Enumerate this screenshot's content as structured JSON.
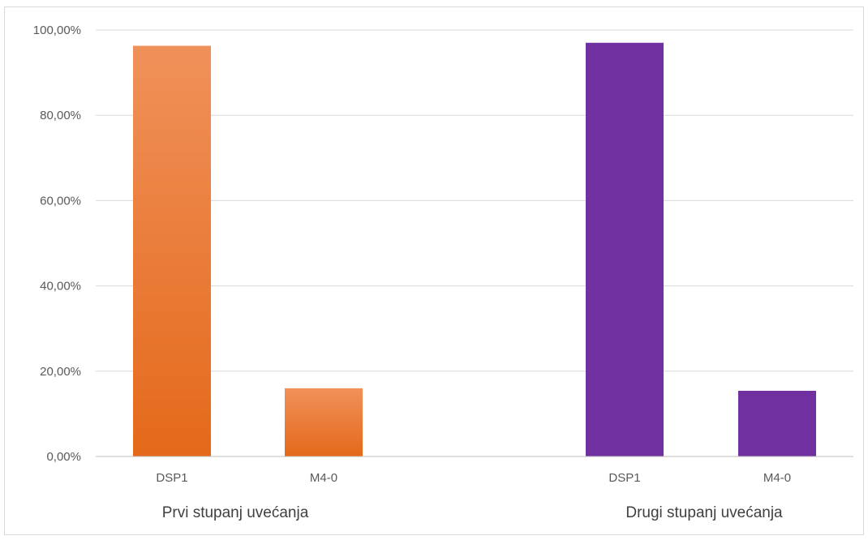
{
  "chart_data": {
    "type": "bar",
    "title": "",
    "xlabel": "",
    "ylabel": "",
    "ylim": [
      0,
      100
    ],
    "y_ticks": [
      0,
      20,
      40,
      60,
      80,
      100
    ],
    "y_tick_labels": [
      "0,00%",
      "20,00%",
      "40,00%",
      "60,00%",
      "80,00%",
      "100,00%"
    ],
    "grid": true,
    "groups": [
      {
        "label": "Prvi stupanj uvećanja",
        "color_top": "#F0915A",
        "color_bottom": "#E4691A",
        "categories": [
          "DSP1",
          "M4-0"
        ],
        "values": [
          96.3,
          16.0
        ]
      },
      {
        "label": "Drugi stupanj uvećanja",
        "color_top": "#7030A0",
        "color_bottom": "#7030A0",
        "categories": [
          "DSP1",
          "M4-0"
        ],
        "values": [
          97.0,
          15.4
        ]
      }
    ]
  }
}
